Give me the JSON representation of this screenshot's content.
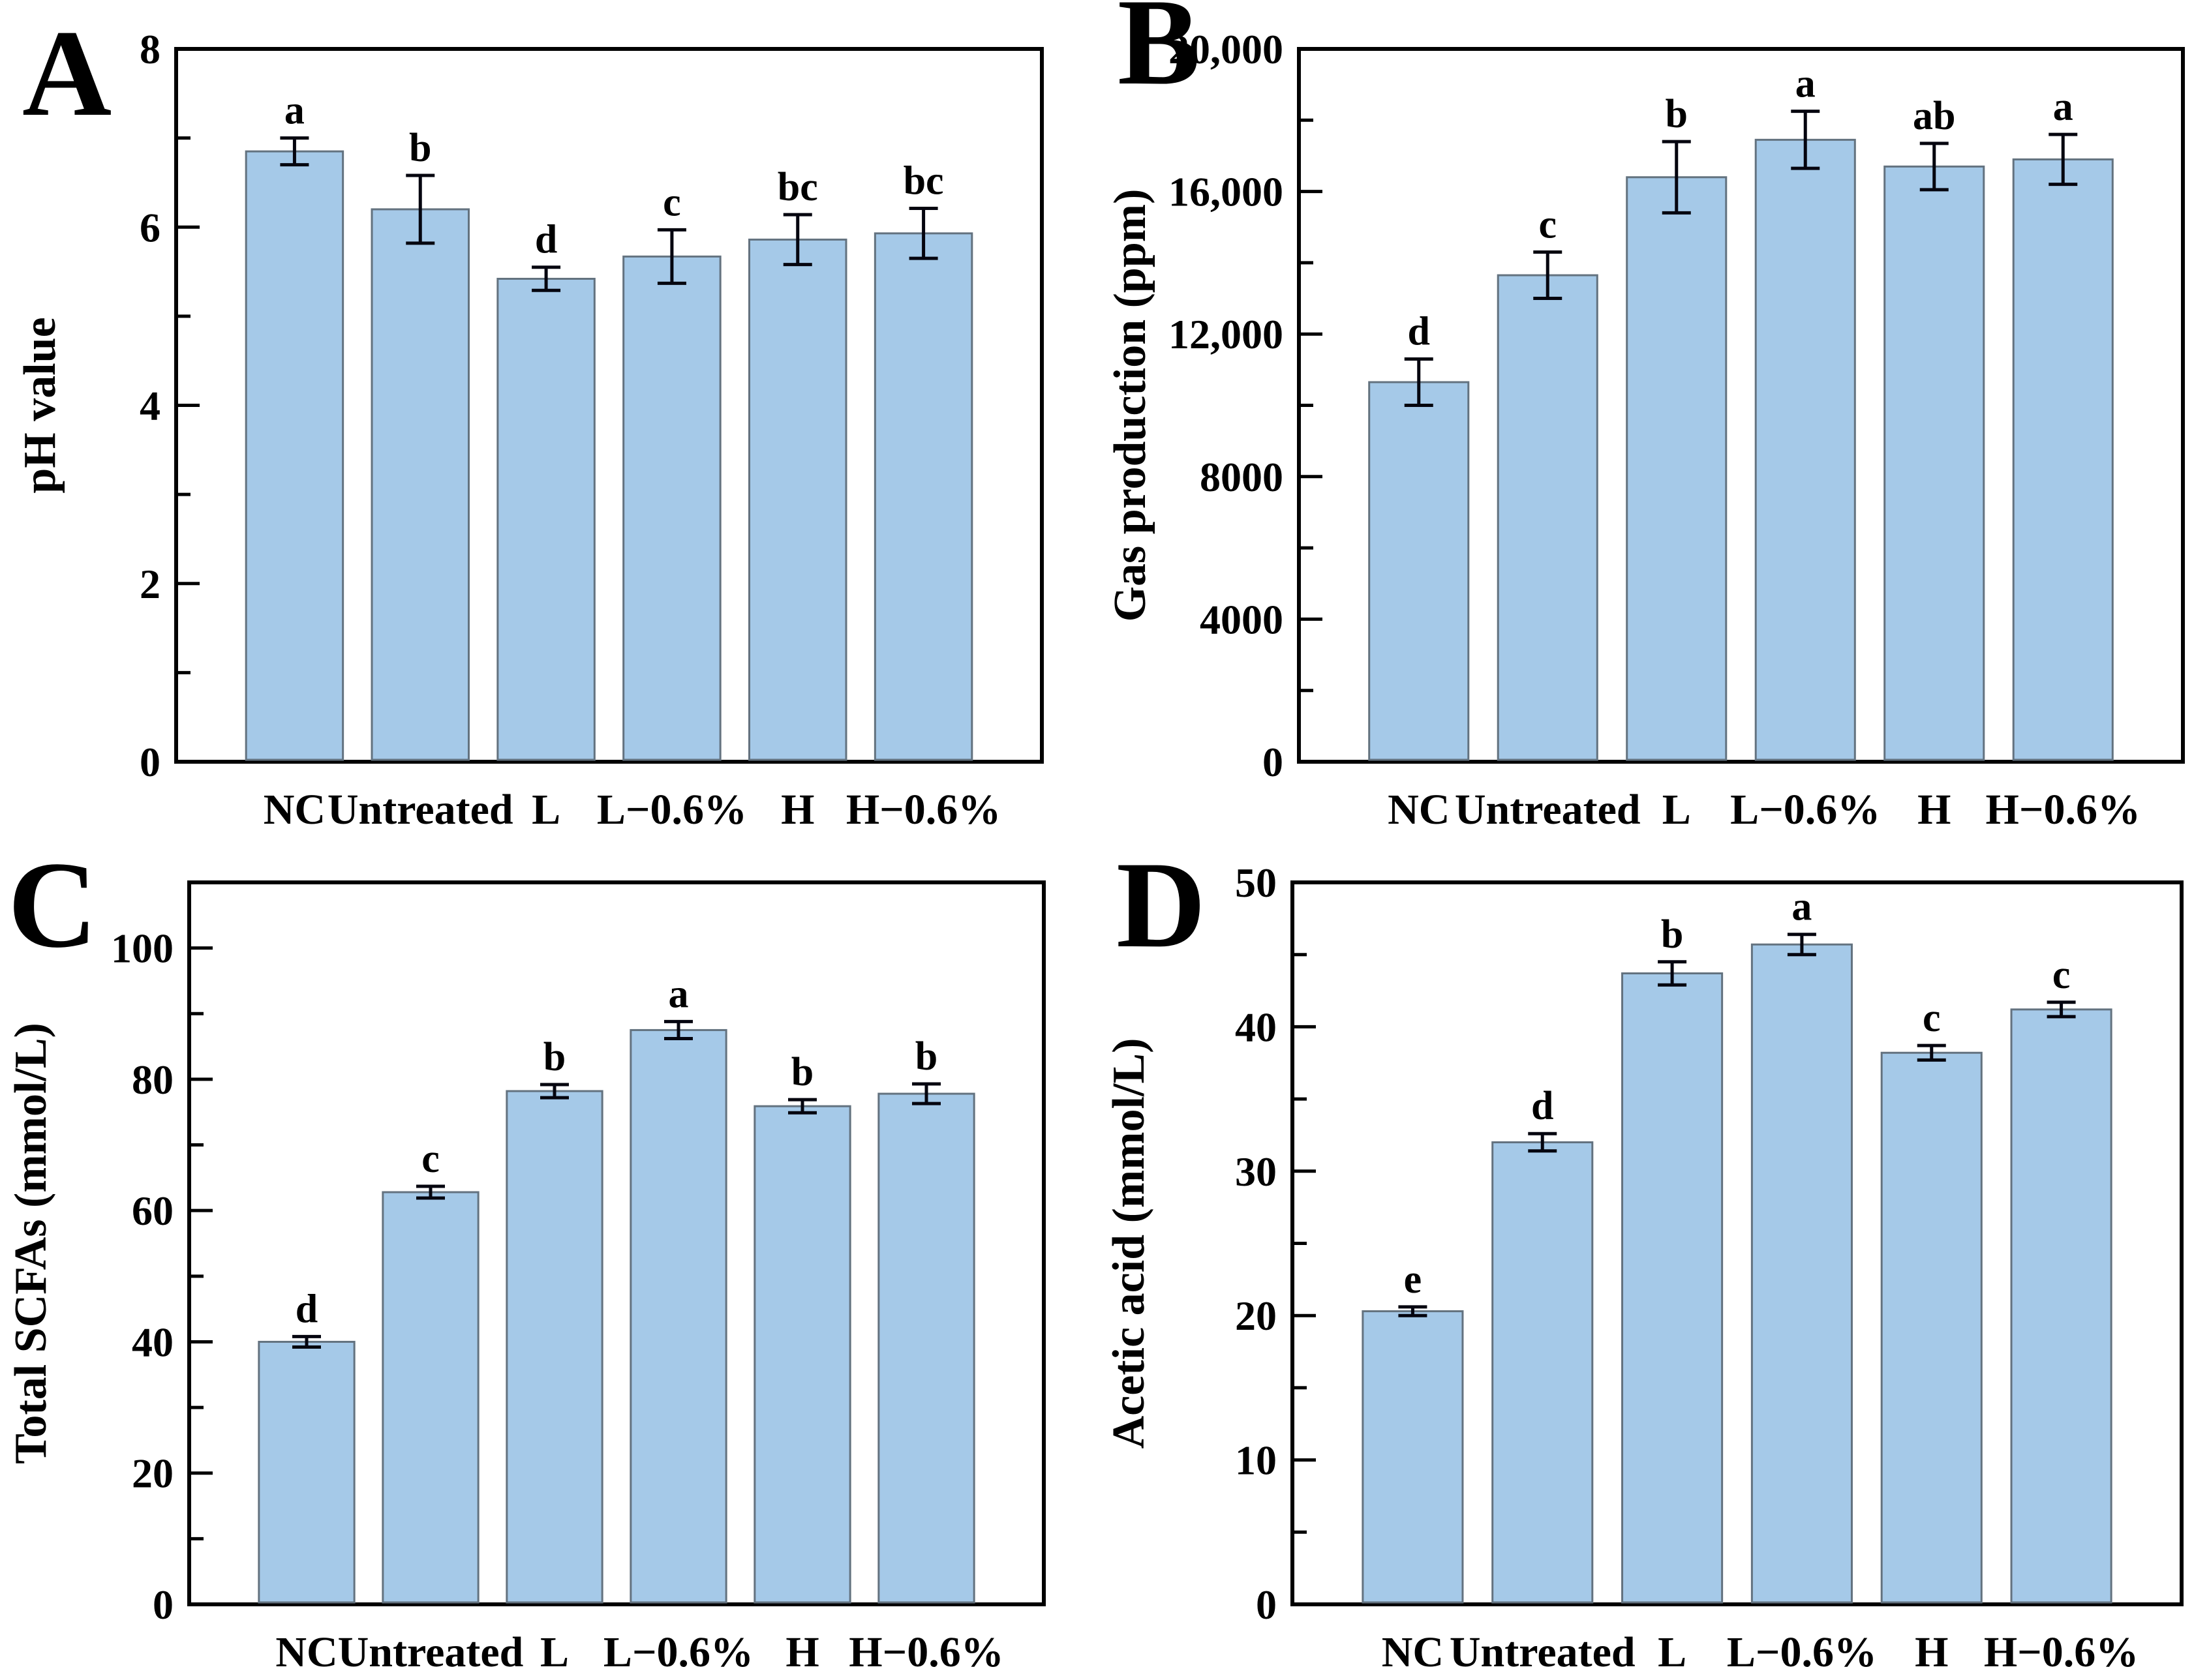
{
  "figure": {
    "background": "#ffffff",
    "description": "Four-panel bar chart figure (A, B, C, D) comparing fermentation groups"
  },
  "style": {
    "bar_fill": "#A5C9E8",
    "bar_stroke": "#63727F",
    "axis_color": "#000000",
    "error_color": "#05050F",
    "text_color": "#000000"
  },
  "chart_data": [
    {
      "panel_letter": "A",
      "type": "bar",
      "ylabel": "pH value",
      "categories": [
        "NC",
        "Untreated",
        "L",
        "L−0.6%",
        "H",
        "H−0.6%"
      ],
      "values": [
        6.85,
        6.2,
        5.42,
        5.67,
        5.86,
        5.93
      ],
      "errors": [
        0.15,
        0.38,
        0.13,
        0.3,
        0.28,
        0.28
      ],
      "sig_letters": [
        "a",
        "b",
        "d",
        "c",
        "bc",
        "bc"
      ],
      "ylim": [
        0,
        8
      ],
      "yticks": [
        {
          "v": 0,
          "label": "0"
        },
        {
          "v": 2,
          "label": "2"
        },
        {
          "v": 4,
          "label": "4"
        },
        {
          "v": 6,
          "label": "6"
        },
        {
          "v": 8,
          "label": "8"
        }
      ],
      "yminor": [
        1,
        3,
        5,
        7
      ],
      "grid": false,
      "legend": null
    },
    {
      "panel_letter": "B",
      "type": "bar",
      "ylabel": "Gas production (ppm)",
      "categories": [
        "NC",
        "Untreated",
        "L",
        "L−0.6%",
        "H",
        "H−0.6%"
      ],
      "values": [
        10650,
        13650,
        16400,
        17450,
        16700,
        16900
      ],
      "errors": [
        650,
        650,
        1000,
        800,
        650,
        700
      ],
      "sig_letters": [
        "d",
        "c",
        "b",
        "a",
        "ab",
        "a"
      ],
      "ylim": [
        0,
        20000
      ],
      "yticks": [
        {
          "v": 0,
          "label": "0"
        },
        {
          "v": 4000,
          "label": "4000"
        },
        {
          "v": 8000,
          "label": "8000"
        },
        {
          "v": 12000,
          "label": "12,000"
        },
        {
          "v": 16000,
          "label": "16,000"
        },
        {
          "v": 20000,
          "label": "20,000"
        }
      ],
      "yminor": [
        2000,
        6000,
        10000,
        14000,
        18000
      ],
      "grid": false,
      "legend": null
    },
    {
      "panel_letter": "C",
      "type": "bar",
      "ylabel": "Total SCFAs (mmol/L)",
      "categories": [
        "NC",
        "Untreated",
        "L",
        "L−0.6%",
        "H",
        "H−0.6%"
      ],
      "values": [
        40.0,
        62.8,
        78.2,
        87.5,
        75.9,
        77.8
      ],
      "errors": [
        0.8,
        0.9,
        1.0,
        1.3,
        1.0,
        1.5
      ],
      "sig_letters": [
        "d",
        "c",
        "b",
        "a",
        "b",
        "b"
      ],
      "ylim": [
        0,
        110
      ],
      "yticks": [
        {
          "v": 0,
          "label": "0"
        },
        {
          "v": 20,
          "label": "20"
        },
        {
          "v": 40,
          "label": "40"
        },
        {
          "v": 60,
          "label": "60"
        },
        {
          "v": 80,
          "label": "80"
        },
        {
          "v": 100,
          "label": "100"
        }
      ],
      "yminor": [
        10,
        30,
        50,
        70,
        90
      ],
      "grid": false,
      "legend": null
    },
    {
      "panel_letter": "D",
      "type": "bar",
      "ylabel": "Acetic acid (mmol/L)",
      "categories": [
        "NC",
        "Untreated",
        "L",
        "L−0.6%",
        "H",
        "H−0.6%"
      ],
      "values": [
        20.3,
        32.0,
        43.7,
        45.7,
        38.2,
        41.2
      ],
      "errors": [
        0.3,
        0.6,
        0.8,
        0.7,
        0.5,
        0.5
      ],
      "sig_letters": [
        "e",
        "d",
        "b",
        "a",
        "c",
        "c"
      ],
      "ylim": [
        0,
        50
      ],
      "yticks": [
        {
          "v": 0,
          "label": "0"
        },
        {
          "v": 10,
          "label": "10"
        },
        {
          "v": 20,
          "label": "20"
        },
        {
          "v": 30,
          "label": "30"
        },
        {
          "v": 40,
          "label": "40"
        },
        {
          "v": 50,
          "label": "50"
        }
      ],
      "yminor": [
        5,
        15,
        25,
        35,
        45
      ],
      "grid": false,
      "legend": null
    }
  ]
}
